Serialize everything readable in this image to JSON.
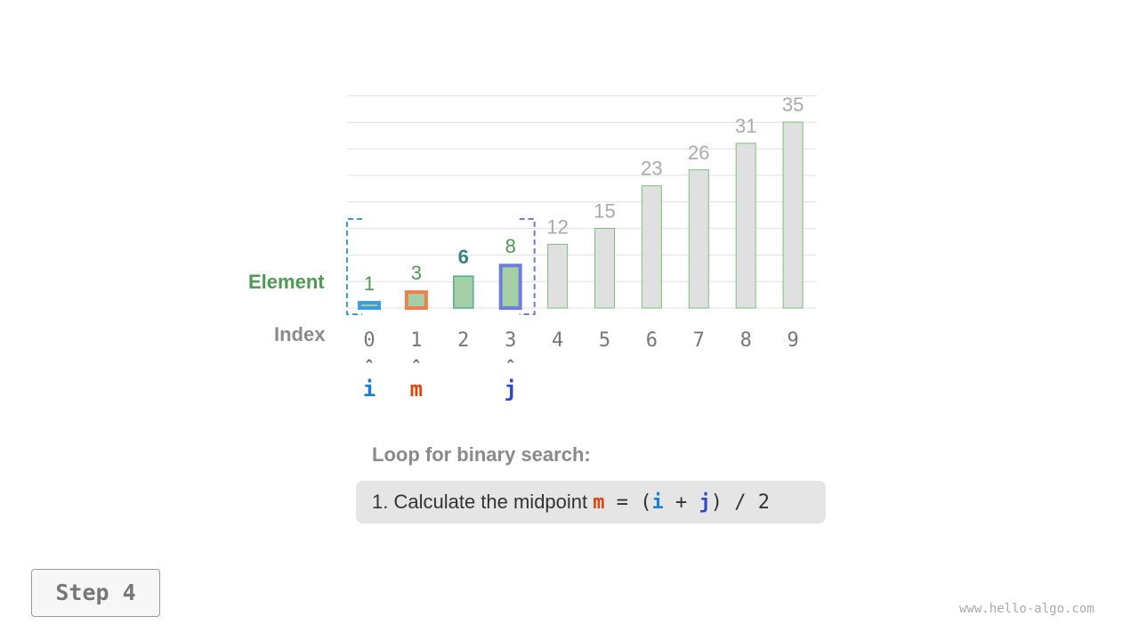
{
  "chart_data": {
    "type": "bar",
    "categories": [
      "0",
      "1",
      "2",
      "3",
      "4",
      "5",
      "6",
      "7",
      "8",
      "9"
    ],
    "values": [
      1,
      3,
      6,
      8,
      12,
      15,
      23,
      26,
      31,
      35
    ],
    "row_labels": {
      "element": "Element",
      "index": "Index"
    },
    "search_range": [
      0,
      3
    ],
    "pointers": [
      {
        "name": "i",
        "index": 0,
        "color": "#1a7fd0"
      },
      {
        "name": "m",
        "index": 1,
        "color": "#e0440e"
      },
      {
        "name": "j",
        "index": 3,
        "color": "#2f48c9"
      }
    ],
    "pointer_arrow": "^",
    "colors": {
      "in_range_fill": "#a5d0a5",
      "out_range_fill": "#e0e0e0",
      "in_range_label": "#4e9a53",
      "out_range_label": "#aaaaaa",
      "i_border": "#3e9de0",
      "m_border": "#f07f4f",
      "j_border": "#6d7fdc",
      "grid": "#e0e0e0"
    }
  },
  "explanation": {
    "title": "Loop for binary search:",
    "step_text": "1. Calculate the midpoint",
    "formula": {
      "m": "m",
      "eq": " = (",
      "i": "i",
      "plus": " + ",
      "j": "j",
      "rest": ") / 2"
    }
  },
  "step_button": "Step 4",
  "watermark": "www.hello-algo.com"
}
